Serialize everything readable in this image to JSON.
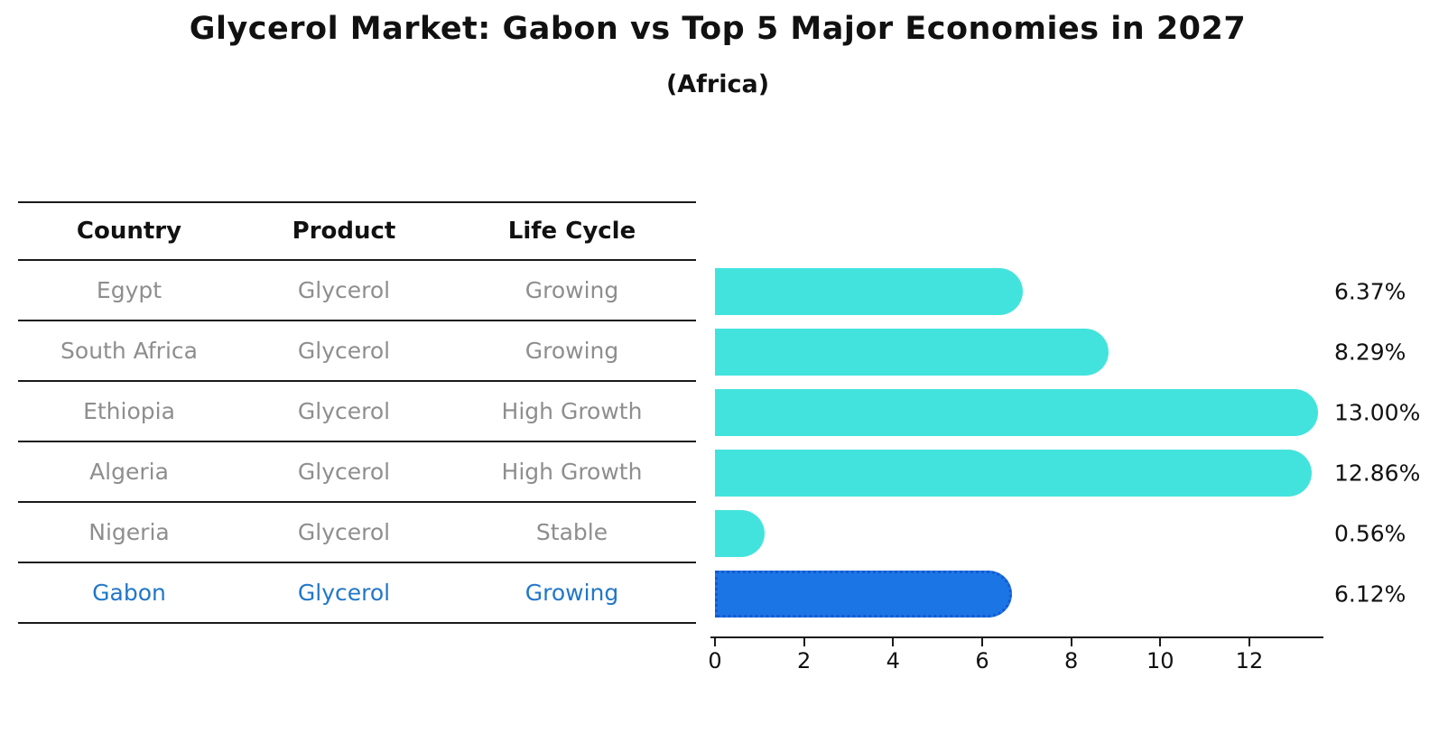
{
  "title": "Glycerol Market: Gabon vs Top 5 Major Economies in 2027",
  "subtitle": "(Africa)",
  "table": {
    "headers": [
      "Country",
      "Product",
      "Life Cycle"
    ],
    "rows": [
      {
        "country": "Egypt",
        "product": "Glycerol",
        "life_cycle": "Growing",
        "highlight": false
      },
      {
        "country": "South Africa",
        "product": "Glycerol",
        "life_cycle": "Growing",
        "highlight": false
      },
      {
        "country": "Ethiopia",
        "product": "Glycerol",
        "life_cycle": "High Growth",
        "highlight": false
      },
      {
        "country": "Algeria",
        "product": "Glycerol",
        "life_cycle": "High Growth",
        "highlight": false
      },
      {
        "country": "Nigeria",
        "product": "Glycerol",
        "life_cycle": "Stable",
        "highlight": false
      },
      {
        "country": "Gabon",
        "product": "Glycerol",
        "life_cycle": "Growing",
        "highlight": true
      }
    ]
  },
  "chart_data": {
    "type": "bar",
    "orientation": "horizontal",
    "title": "Glycerol Market: Gabon vs Top 5 Major Economies in 2027",
    "subtitle": "(Africa)",
    "categories": [
      "Egypt",
      "South Africa",
      "Ethiopia",
      "Algeria",
      "Nigeria",
      "Gabon"
    ],
    "values": [
      6.37,
      8.29,
      13.0,
      12.86,
      0.56,
      6.12
    ],
    "value_labels": [
      "6.37%",
      "8.29%",
      "13.00%",
      "12.86%",
      "0.56%",
      "6.12%"
    ],
    "unit": "percent",
    "x_ticks": [
      0,
      2,
      4,
      6,
      8,
      10,
      12
    ],
    "xlim": [
      0,
      13.65
    ],
    "grid": false,
    "legend": "none",
    "highlight_index": 5,
    "colors": {
      "default_bar": "#43E3DD",
      "highlight_bar": "#1C75E5",
      "highlight_border": "#1559D1",
      "highlight_text": "#2277C8",
      "row_text": "#8e8e8e",
      "text": "#111111"
    }
  }
}
